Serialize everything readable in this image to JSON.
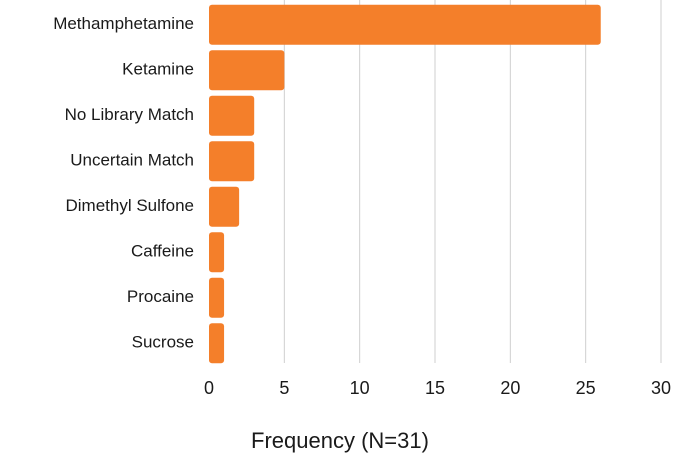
{
  "chart_data": {
    "type": "bar",
    "orientation": "horizontal",
    "categories": [
      "Methamphetamine",
      "Ketamine",
      "No Library Match",
      "Uncertain Match",
      "Dimethyl Sulfone",
      "Caffeine",
      "Procaine",
      "Sucrose"
    ],
    "values": [
      26,
      5,
      3,
      3,
      2,
      1,
      1,
      1
    ],
    "title": "",
    "xlabel": "Frequency (N=31)",
    "ylabel": "",
    "xlim": [
      0,
      30
    ],
    "xticks": [
      0,
      5,
      10,
      15,
      20,
      25,
      30
    ],
    "grid": "vertical",
    "legend": "none",
    "bar_color": "#F47F2A",
    "grid_color": "#CFCFCF"
  }
}
